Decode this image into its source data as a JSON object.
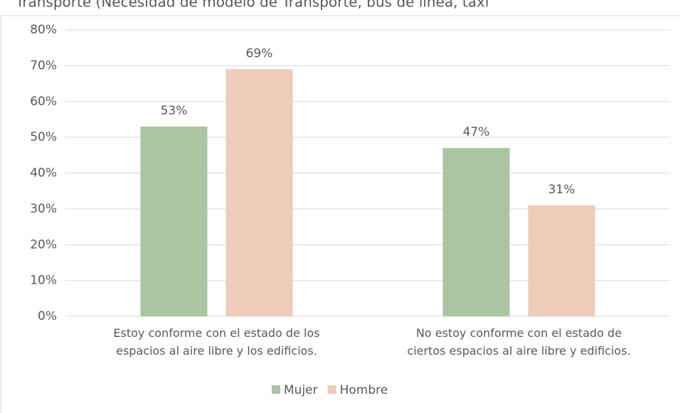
{
  "chart_data": {
    "type": "bar",
    "title": "Transporte (Necesidad de modelo de Transporte, bus de línea, taxi",
    "categories": [
      "Estoy conforme con el estado de los\nespacios al aire libre y los edificios.",
      "No estoy conforme con el estado de\nciertos espacios al aire libre y edificios."
    ],
    "series": [
      {
        "name": "Mujer",
        "color": "#a9c5a2",
        "values": [
          53,
          47
        ],
        "value_labels": [
          "53%",
          "47%"
        ]
      },
      {
        "name": "Hombre",
        "color": "#efcbb9",
        "values": [
          69,
          31
        ],
        "value_labels": [
          "69%",
          "31%"
        ]
      }
    ],
    "ylim": [
      0,
      80
    ],
    "yticks": [
      {
        "value": 0,
        "label": "0%"
      },
      {
        "value": 10,
        "label": "10%"
      },
      {
        "value": 20,
        "label": "20%"
      },
      {
        "value": 30,
        "label": "30%"
      },
      {
        "value": 40,
        "label": "40%"
      },
      {
        "value": 50,
        "label": "50%"
      },
      {
        "value": 60,
        "label": "60%"
      },
      {
        "value": 70,
        "label": "70%"
      },
      {
        "value": 80,
        "label": "80%"
      }
    ],
    "grid": true,
    "legend": "bottom"
  }
}
